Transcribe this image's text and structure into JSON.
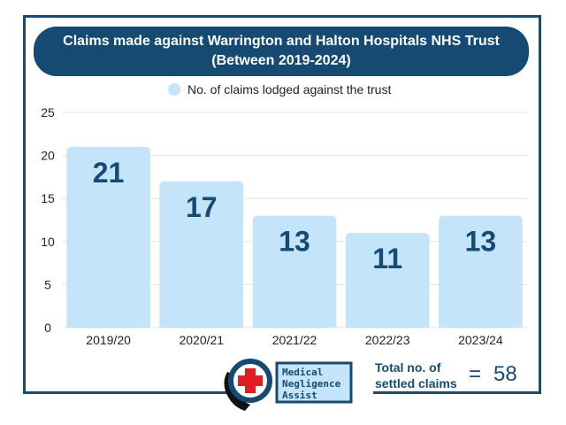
{
  "chart_data": {
    "type": "bar",
    "title_line1": "Claims made against Warrington and Halton Hospitals NHS Trust",
    "title_line2": "(Between 2019-2024)",
    "categories": [
      "2019/20",
      "2020/21",
      "2021/22",
      "2022/23",
      "2023/24"
    ],
    "series": [
      {
        "name": "No. of claims lodged against the trust",
        "values": [
          21,
          17,
          13,
          11,
          13
        ]
      }
    ],
    "ylim": [
      0,
      25
    ],
    "yticks": [
      0,
      5,
      10,
      15,
      20,
      25
    ],
    "grid": true,
    "legend_position": "top-center",
    "bar_color": "#c4e4fa",
    "label_color": "#154a73"
  },
  "logo": {
    "line1": "Medical",
    "line2": "Negligence",
    "line3": "Assist"
  },
  "total": {
    "label_line1": "Total no. of",
    "label_line2": "settled claims",
    "equals": "=",
    "value": "58"
  }
}
